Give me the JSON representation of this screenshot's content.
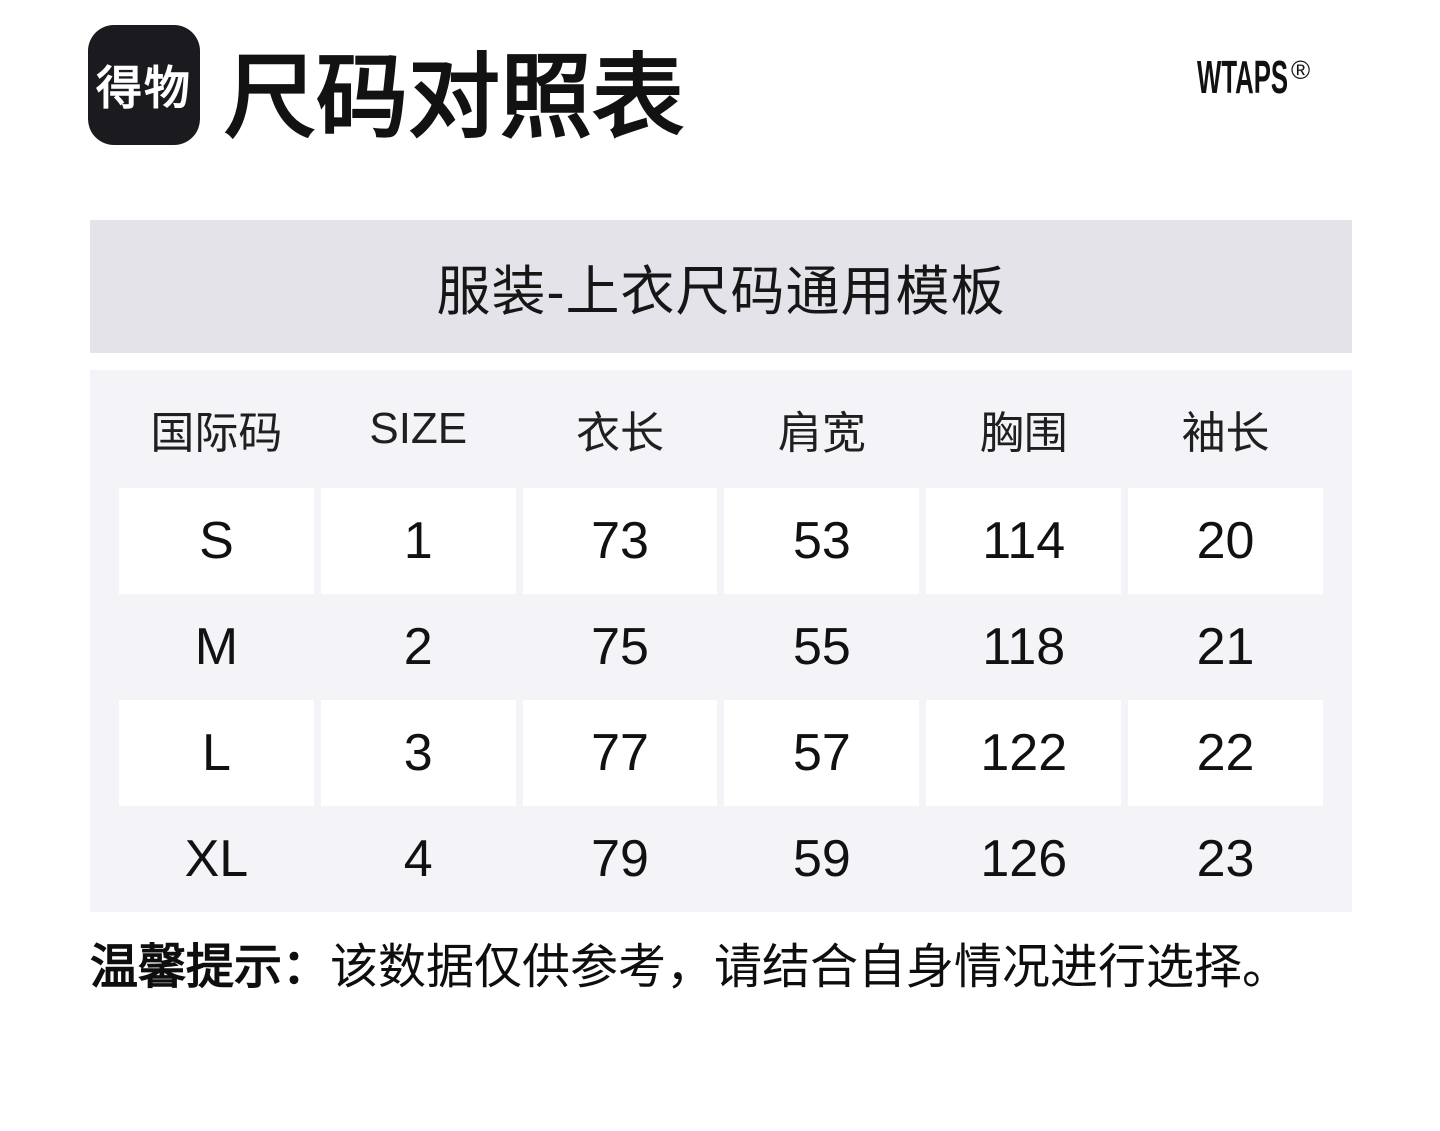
{
  "header": {
    "logo_text": "得物",
    "title": "尺码对照表",
    "brand_name": "WTAPS",
    "brand_reg": "®"
  },
  "banner": {
    "title": "服装-上衣尺码通用模板"
  },
  "chart_data": {
    "type": "table",
    "title": "尺码对照表",
    "subtitle": "服装-上衣尺码通用模板",
    "columns": [
      "国际码",
      "SIZE",
      "衣长",
      "肩宽",
      "胸围",
      "袖长"
    ],
    "rows": [
      [
        "S",
        "1",
        "73",
        "53",
        "114",
        "20"
      ],
      [
        "M",
        "2",
        "75",
        "55",
        "118",
        "21"
      ],
      [
        "L",
        "3",
        "77",
        "57",
        "122",
        "22"
      ],
      [
        "XL",
        "4",
        "79",
        "59",
        "126",
        "23"
      ]
    ],
    "layout_hints": {
      "striped_rows": "rows S and L have white cell backgrounds, rows M and XL sit on light gray panel"
    }
  },
  "footer": {
    "note_label": "温馨提示：",
    "note_text": "该数据仅供参考，请结合自身情况进行选择。"
  },
  "colors": {
    "logo_bg": "#1a1a1f",
    "banner_bg": "#e4e3e9",
    "table_bg": "#f4f4f8",
    "cell_bg": "#ffffff",
    "text": "#141414"
  }
}
